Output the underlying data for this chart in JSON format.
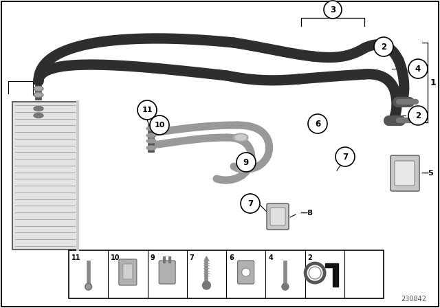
{
  "diagram_number": "230842",
  "background_color": "#ffffff",
  "pipe_color_dark": "#2e2e2e",
  "pipe_color_light": "#b8b8b8",
  "pipe_color_silver": "#999999",
  "radiator_color": "#d4d4d4",
  "radiator_fin_color": "#aaaaaa",
  "fig_width": 6.4,
  "fig_height": 4.48,
  "bottom_items": [
    "11",
    "10",
    "9",
    "7",
    "6",
    "4",
    "2",
    ""
  ]
}
